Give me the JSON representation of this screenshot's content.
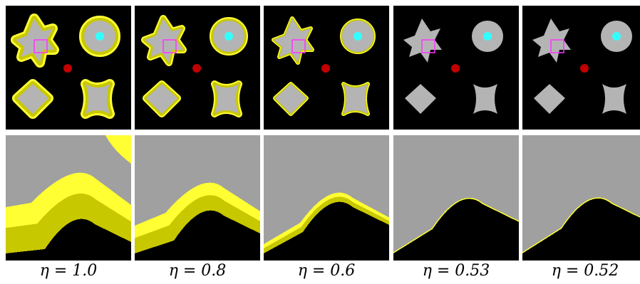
{
  "columns": [
    {
      "eta": "η = 1.0",
      "band": 1.0
    },
    {
      "eta": "η = 0.8",
      "band": 0.8
    },
    {
      "eta": "η = 0.6",
      "band": 0.6
    },
    {
      "eta": "η = 0.53",
      "band": 0.53
    },
    {
      "eta": "η = 0.52",
      "band": 0.52
    }
  ],
  "colors": {
    "background": "#000000",
    "shape": "#b4b4b4",
    "band_outer": "#ffff33",
    "band_inner": "#c8c800",
    "seed_circle": "#33ffff",
    "center_dot": "#c00000",
    "zoom_box": "#ff33ff",
    "zoom_gray": "#a0a0a0"
  }
}
